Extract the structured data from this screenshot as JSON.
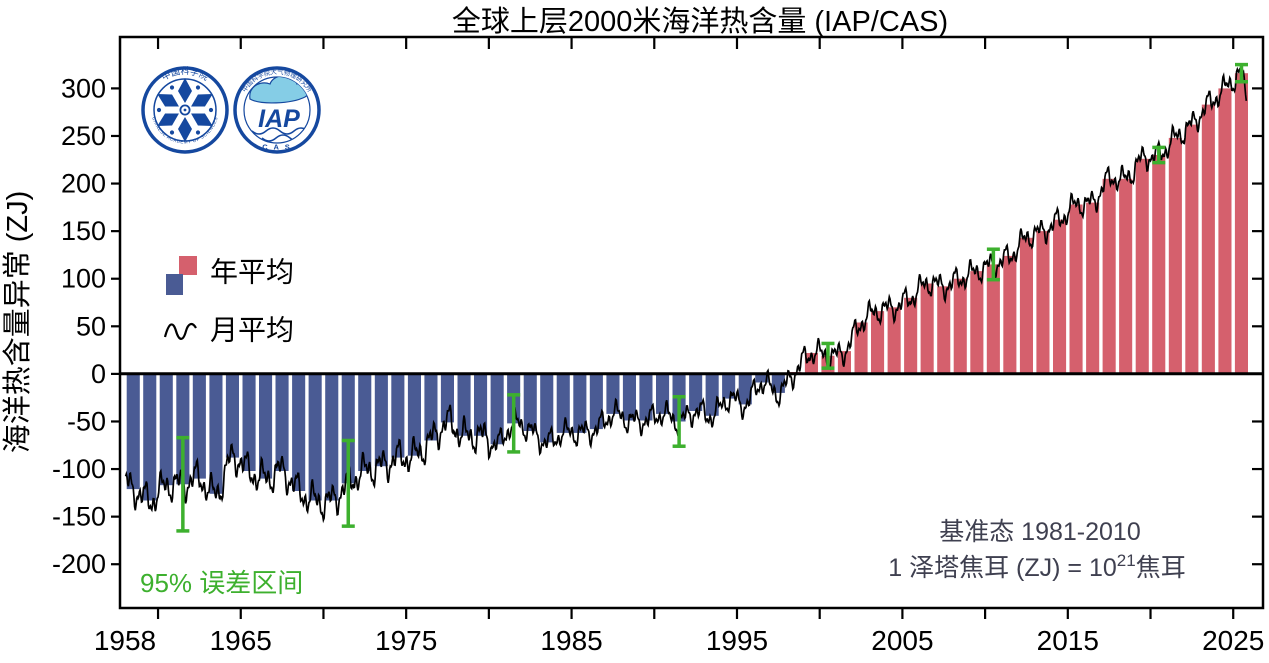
{
  "title": "全球上层2000米海洋热含量 (IAP/CAS)",
  "y_axis_label": "海洋热含量异常 (ZJ)",
  "legend": {
    "annual_label": "年平均",
    "monthly_label": "月平均"
  },
  "annotations": {
    "error_caption": "95% 误差区间",
    "baseline_line": "基准态  1981-2010",
    "unit_prefix": "1 泽塔焦耳 (ZJ) = 10",
    "unit_sup": "21",
    "unit_suffix": "焦耳"
  },
  "logos": {
    "cas_ring_top": "中国科学院",
    "cas_ring_bottom": "CHINESE ACADEMY OF SCIENCES",
    "iap_ring_top": "中国科学院大气物理研究所",
    "iap_text": "IAP",
    "iap_ring_bottom": "C A S"
  },
  "colors": {
    "bar_positive": "#d5606d",
    "bar_negative": "#4a5b94",
    "error_bar": "#3db02e",
    "monthly_line": "#000000",
    "annotation_text": "#3f4050",
    "axis": "#000000",
    "logo_blue": "#15489f",
    "logo_cloud": "#85cde6",
    "logo_green": "#2f9e44"
  },
  "chart_data": {
    "type": "bar",
    "title": "全球上层2000米海洋热含量 (IAP/CAS)",
    "xlabel": "",
    "ylabel": "海洋热含量异常 (ZJ)",
    "legend_position": "upper-left-inside",
    "grid": false,
    "xlim": [
      1957.7,
      2026.8
    ],
    "ylim": [
      -246,
      354
    ],
    "y_ticks": [
      -200,
      -150,
      -100,
      -50,
      0,
      50,
      100,
      150,
      200,
      250,
      300
    ],
    "x_tick_labels": [
      1958,
      1965,
      1975,
      1985,
      1995,
      2005,
      2015,
      2025
    ],
    "x_minor_ticks": {
      "start": 1960,
      "end": 2025,
      "step": 5
    },
    "years": [
      1958,
      1959,
      1960,
      1961,
      1962,
      1963,
      1964,
      1965,
      1966,
      1967,
      1968,
      1969,
      1970,
      1971,
      1972,
      1973,
      1974,
      1975,
      1976,
      1977,
      1978,
      1979,
      1980,
      1981,
      1982,
      1983,
      1984,
      1985,
      1986,
      1987,
      1988,
      1989,
      1990,
      1991,
      1992,
      1993,
      1994,
      1995,
      1996,
      1997,
      1998,
      1999,
      2000,
      2001,
      2002,
      2003,
      2004,
      2005,
      2006,
      2007,
      2008,
      2009,
      2010,
      2011,
      2012,
      2013,
      2014,
      2015,
      2016,
      2017,
      2018,
      2019,
      2020,
      2021,
      2022,
      2023,
      2024,
      2025
    ],
    "annual_ZJ": [
      -121,
      -133,
      -117,
      -116,
      -110,
      -126,
      -88,
      -102,
      -110,
      -102,
      -123,
      -133,
      -133,
      -115,
      -102,
      -97,
      -88,
      -86,
      -70,
      -51,
      -65,
      -65,
      -74,
      -52,
      -60,
      -72,
      -62,
      -62,
      -58,
      -42,
      -49,
      -49,
      -42,
      -50,
      -39,
      -44,
      -26,
      -32,
      -9,
      -20,
      2,
      22,
      19,
      24,
      54,
      66,
      70,
      80,
      95,
      92,
      100,
      108,
      115,
      124,
      143,
      150,
      162,
      178,
      180,
      205,
      205,
      226,
      230,
      248,
      262,
      283,
      300,
      316
    ],
    "error_bars_95pct": [
      {
        "year": 1961,
        "half_width_ZJ": 49
      },
      {
        "year": 1971,
        "half_width_ZJ": 45
      },
      {
        "year": 1981,
        "half_width_ZJ": 30
      },
      {
        "year": 1991,
        "half_width_ZJ": 26
      },
      {
        "year": 2000,
        "half_width_ZJ": 13
      },
      {
        "year": 2010,
        "half_width_ZJ": 16
      },
      {
        "year": 2020,
        "half_width_ZJ": 8
      },
      {
        "year": 2025,
        "half_width_ZJ": 9
      }
    ],
    "monthly_line": {
      "description": "monthly mean OHC anomaly, black curve interpolated through annual means with intra-annual variability, from 1958 to mid-2025, ending near +315 ZJ after peaking about +330 ZJ",
      "t_start": 1958.04,
      "t_end": 2025.82,
      "step_years": 0.0416667,
      "wiggle_components": [
        {
          "amp": 8.0,
          "period": 1.02,
          "phase": 0.4
        },
        {
          "amp": 5.5,
          "period": 0.437,
          "phase": 2.2
        },
        {
          "amp": 3.5,
          "period": 0.204,
          "phase": 4.8
        }
      ],
      "early_boost": {
        "until": 1980,
        "factor": 1.35
      },
      "end_dip": {
        "start": 2025.35,
        "strength": 180
      }
    }
  }
}
